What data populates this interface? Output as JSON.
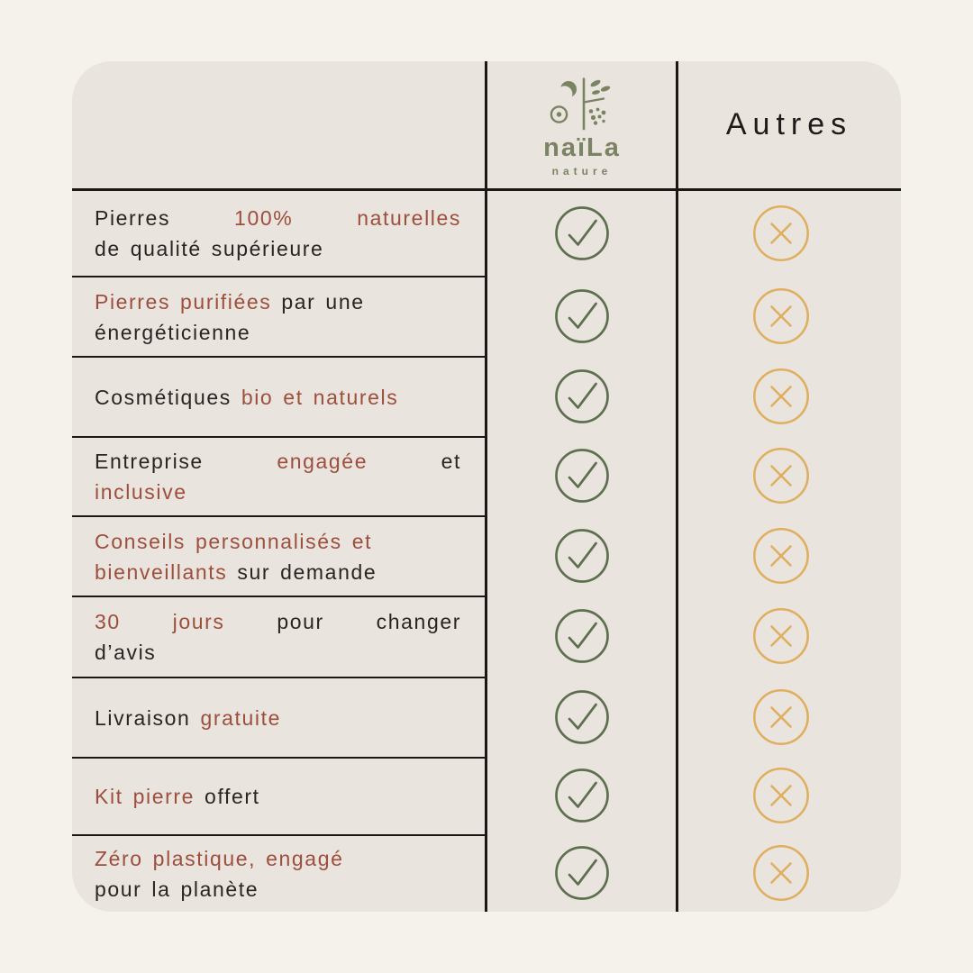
{
  "page": {
    "background": "#f5f1eb"
  },
  "card": {
    "background": "#e9e4de"
  },
  "colors": {
    "line": "#1a1714",
    "dark": "#2a2522",
    "red": "#9d4e3c",
    "green": "#5e6f50",
    "gold": "#dfae5f",
    "logo_green": "#7a8462"
  },
  "header": {
    "brand": {
      "name": "naïLa",
      "subtitle": "nature",
      "logo_icon": "naila-moon-plant-emblem"
    },
    "other_label": "Autres"
  },
  "icons": {
    "check": "check-in-circle-icon",
    "cross": "x-in-circle-icon"
  },
  "table": {
    "columns": [
      "feature",
      "naila",
      "autres"
    ],
    "rows": [
      {
        "lines": [
          {
            "justify": true,
            "segments": [
              {
                "text": "Pierres",
                "color": "dark"
              },
              {
                "text": "100% naturelles",
                "color": "red"
              }
            ]
          },
          {
            "justify": false,
            "segments": [
              {
                "text": "de qualité supérieure",
                "color": "dark"
              }
            ]
          }
        ],
        "naila": "check",
        "autres": "cross"
      },
      {
        "lines": [
          {
            "justify": false,
            "segments": [
              {
                "text": "Pierres purifiées",
                "color": "red"
              },
              {
                "text": "par une",
                "color": "dark"
              }
            ]
          },
          {
            "justify": false,
            "segments": [
              {
                "text": "énergéticienne",
                "color": "dark"
              }
            ]
          }
        ],
        "naila": "check",
        "autres": "cross"
      },
      {
        "lines": [
          {
            "justify": false,
            "segments": [
              {
                "text": "Cosmétiques",
                "color": "dark"
              },
              {
                "text": "bio et naturels",
                "color": "red"
              }
            ]
          }
        ],
        "naila": "check",
        "autres": "cross"
      },
      {
        "lines": [
          {
            "justify": true,
            "segments": [
              {
                "text": "Entreprise",
                "color": "dark"
              },
              {
                "text": "engagée",
                "color": "red"
              },
              {
                "text": "et",
                "color": "dark"
              }
            ]
          },
          {
            "justify": false,
            "segments": [
              {
                "text": "inclusive",
                "color": "red"
              }
            ]
          }
        ],
        "naila": "check",
        "autres": "cross"
      },
      {
        "lines": [
          {
            "justify": false,
            "segments": [
              {
                "text": "Conseils personnalisés et",
                "color": "red"
              }
            ]
          },
          {
            "justify": false,
            "segments": [
              {
                "text": "bienveillants",
                "color": "red"
              },
              {
                "text": "sur demande",
                "color": "dark"
              }
            ]
          }
        ],
        "naila": "check",
        "autres": "cross"
      },
      {
        "lines": [
          {
            "justify": true,
            "segments": [
              {
                "text": "30 jours",
                "color": "red"
              },
              {
                "text": "pour changer",
                "color": "dark"
              }
            ]
          },
          {
            "justify": false,
            "segments": [
              {
                "text": "d’avis",
                "color": "dark"
              }
            ]
          }
        ],
        "naila": "check",
        "autres": "cross"
      },
      {
        "lines": [
          {
            "justify": false,
            "segments": [
              {
                "text": "Livraison",
                "color": "dark"
              },
              {
                "text": "gratuite",
                "color": "red"
              }
            ]
          }
        ],
        "naila": "check",
        "autres": "cross"
      },
      {
        "lines": [
          {
            "justify": false,
            "segments": [
              {
                "text": "Kit pierre",
                "color": "red"
              },
              {
                "text": "offert",
                "color": "dark"
              }
            ]
          }
        ],
        "naila": "check",
        "autres": "cross"
      },
      {
        "lines": [
          {
            "justify": false,
            "segments": [
              {
                "text": "Zéro plastique, engagé",
                "color": "red"
              }
            ]
          },
          {
            "justify": false,
            "segments": [
              {
                "text": "pour la planète",
                "color": "dark"
              }
            ]
          }
        ],
        "naila": "check",
        "autres": "cross"
      }
    ]
  }
}
